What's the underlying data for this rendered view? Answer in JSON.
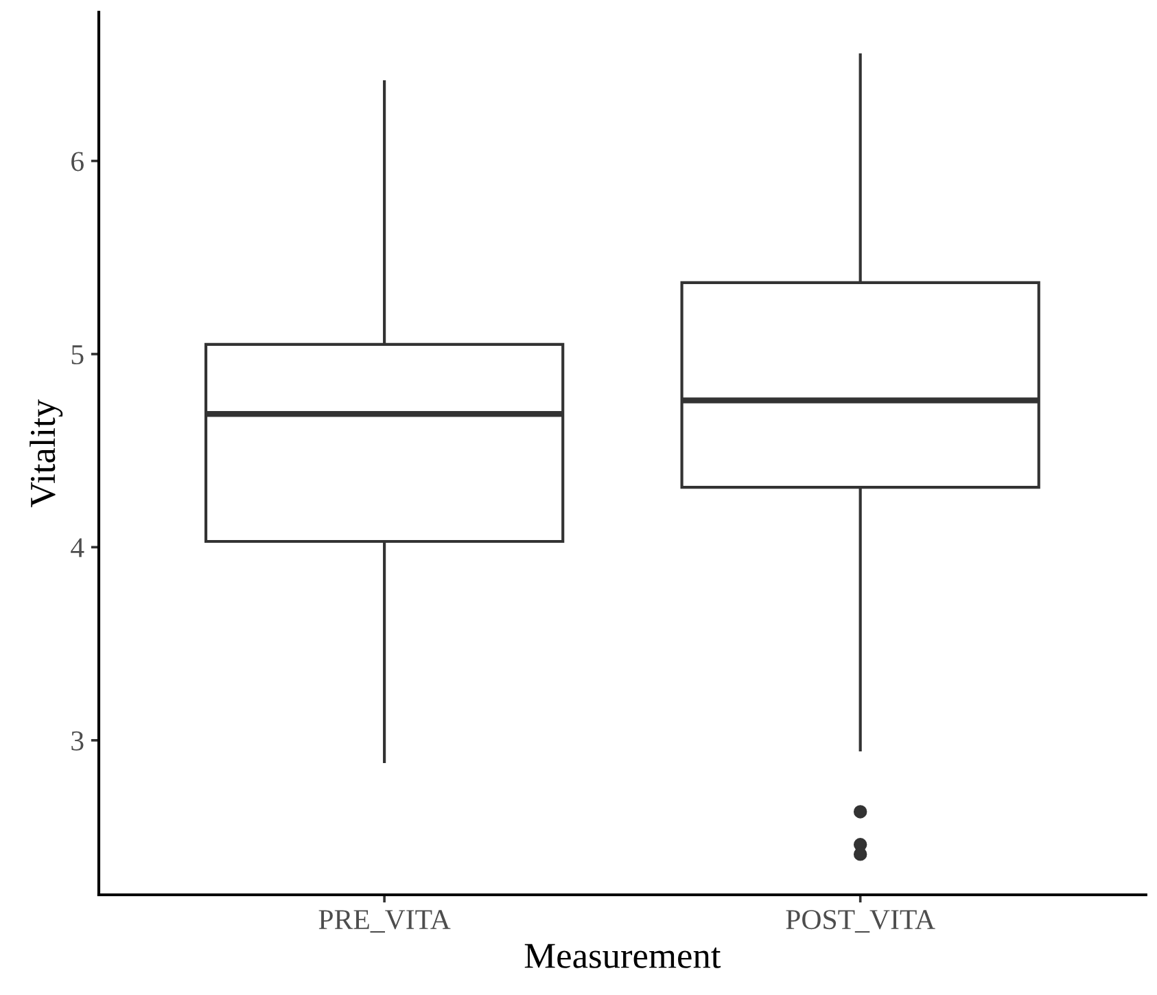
{
  "chart_data": {
    "type": "box",
    "xlabel": "Measurement",
    "ylabel": "Vitality",
    "categories": [
      "PRE_VITA",
      "POST_VITA"
    ],
    "boxes": [
      {
        "low": 2.89,
        "q1": 4.03,
        "median": 4.69,
        "q3": 5.05,
        "high": 6.41
      },
      {
        "low": 2.95,
        "q1": 4.31,
        "median": 4.76,
        "q3": 5.37,
        "high": 6.55,
        "outliers": [
          2.63,
          2.46,
          2.41
        ]
      }
    ],
    "ylim": [
      2.2,
      6.77
    ],
    "yticks": [
      3,
      4,
      5,
      6
    ],
    "grid": false,
    "legend": false
  }
}
